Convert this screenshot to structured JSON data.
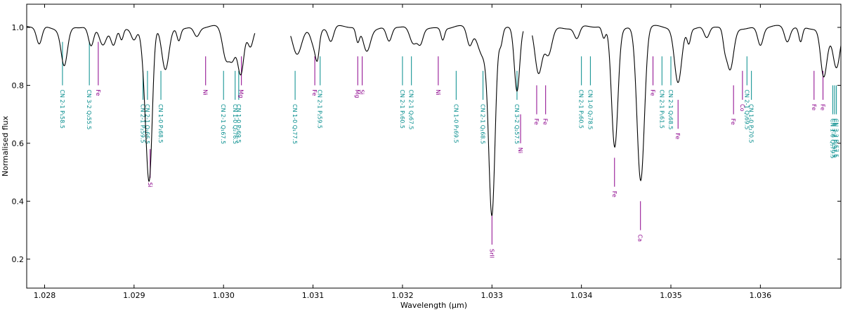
{
  "chart_data": {
    "type": "line",
    "title": "",
    "xlabel": "Wavelength (μm)",
    "ylabel": "Normalised flux",
    "xlim": [
      1.0278,
      1.0369
    ],
    "ylim": [
      0.1,
      1.08
    ],
    "x_ticks": [
      {
        "value": 1.028,
        "label": "1.028"
      },
      {
        "value": 1.029,
        "label": "1.029"
      },
      {
        "value": 1.03,
        "label": "1.030"
      },
      {
        "value": 1.031,
        "label": "1.031"
      },
      {
        "value": 1.032,
        "label": "1.032"
      },
      {
        "value": 1.033,
        "label": "1.033"
      },
      {
        "value": 1.034,
        "label": "1.034"
      },
      {
        "value": 1.035,
        "label": "1.035"
      },
      {
        "value": 1.036,
        "label": "1.036"
      }
    ],
    "y_ticks": [
      {
        "value": 0.2,
        "label": "0.2"
      },
      {
        "value": 0.4,
        "label": "0.4"
      },
      {
        "value": 0.6,
        "label": "0.6"
      },
      {
        "value": 0.8,
        "label": "0.8"
      },
      {
        "value": 1.0,
        "label": "1.0"
      }
    ],
    "colors": {
      "spectrum": "#000000",
      "CN": "#008b8b",
      "atomic": "#8b008b"
    },
    "spectrum": {
      "segments": [
        {
          "start": 1.0278,
          "end": 1.03035
        },
        {
          "start": 1.03075,
          "end": 1.03335
        },
        {
          "start": 1.03345,
          "end": 1.0369
        }
      ],
      "continuum": 1.0,
      "lines": [
        {
          "x": 1.02794,
          "depth": 0.06,
          "width": 3e-05
        },
        {
          "x": 1.02822,
          "depth": 0.05,
          "width": 3e-05
        },
        {
          "x": 1.02852,
          "depth": 0.07,
          "width": 3e-05
        },
        {
          "x": 1.02877,
          "depth": 0.06,
          "width": 3e-05
        },
        {
          "x": 1.029,
          "depth": 0.04,
          "width": 3e-05
        },
        {
          "x": 1.02915,
          "depth": 0.08,
          "width": 3e-05
        },
        {
          "x": 1.0297,
          "depth": 0.03,
          "width": 3e-05
        },
        {
          "x": 1.0301,
          "depth": 0.08,
          "width": 3e-05
        },
        {
          "x": 1.0302,
          "depth": 0.07,
          "width": 3e-05
        },
        {
          "x": 1.0303,
          "depth": 0.06,
          "width": 3e-05
        },
        {
          "x": 1.0312,
          "depth": 0.05,
          "width": 3e-05
        },
        {
          "x": 1.03185,
          "depth": 0.05,
          "width": 3e-05
        },
        {
          "x": 1.0322,
          "depth": 0.05,
          "width": 3e-05
        },
        {
          "x": 1.03275,
          "depth": 0.06,
          "width": 3e-05
        },
        {
          "x": 1.03395,
          "depth": 0.04,
          "width": 3e-05
        },
        {
          "x": 1.0344,
          "depth": 0.03,
          "width": 3e-05
        },
        {
          "x": 1.0347,
          "depth": 0.04,
          "width": 3e-05
        },
        {
          "x": 1.0354,
          "depth": 0.04,
          "width": 3e-05
        },
        {
          "x": 1.036,
          "depth": 0.06,
          "width": 3e-05
        },
        {
          "x": 1.0363,
          "depth": 0.05,
          "width": 3e-05
        },
        {
          "x": 1.0367,
          "depth": 0.07,
          "width": 3e-05
        },
        {
          "x": 1.02886,
          "depth": 0.04,
          "width": 2e-05
        },
        {
          "x": 1.0295,
          "depth": 0.04,
          "width": 2e-05
        },
        {
          "x": 1.03105,
          "depth": 0.06,
          "width": 2e-05
        },
        {
          "x": 1.0315,
          "depth": 0.05,
          "width": 2e-05
        },
        {
          "x": 1.03245,
          "depth": 0.04,
          "width": 2e-05
        },
        {
          "x": 1.0331,
          "depth": 0.05,
          "width": 2e-05
        },
        {
          "x": 1.03425,
          "depth": 0.04,
          "width": 2e-05
        },
        {
          "x": 1.0352,
          "depth": 0.05,
          "width": 2e-05
        },
        {
          "x": 1.0356,
          "depth": 0.04,
          "width": 2e-05
        },
        {
          "x": 1.03645,
          "depth": 0.05,
          "width": 2e-05
        },
        {
          "x": 1.02822,
          "depth": 0.08,
          "width": 4e-05
        },
        {
          "x": 1.02865,
          "depth": 0.06,
          "width": 4e-05
        },
        {
          "x": 1.02918,
          "depth": 0.32,
          "width": 3e-05
        },
        {
          "x": 1.02914,
          "depth": 0.22,
          "width": 4e-05
        },
        {
          "x": 1.02935,
          "depth": 0.15,
          "width": 4e-05
        },
        {
          "x": 1.03003,
          "depth": 0.11,
          "width": 4e-05
        },
        {
          "x": 1.03018,
          "depth": 0.1,
          "width": 4e-05
        },
        {
          "x": 1.03082,
          "depth": 0.09,
          "width": 5e-05
        },
        {
          "x": 1.03102,
          "depth": 0.07,
          "width": 4e-05
        },
        {
          "x": 1.0316,
          "depth": 0.08,
          "width": 4e-05
        },
        {
          "x": 1.03212,
          "depth": 0.06,
          "width": 4e-05
        },
        {
          "x": 1.033,
          "depth": 0.62,
          "width": 3.5e-05
        },
        {
          "x": 1.0329,
          "depth": 0.1,
          "width": 6e-05
        },
        {
          "x": 1.03328,
          "depth": 0.22,
          "width": 3e-05
        },
        {
          "x": 1.03352,
          "depth": 0.16,
          "width": 4e-05
        },
        {
          "x": 1.03363,
          "depth": 0.09,
          "width": 4e-05
        },
        {
          "x": 1.03437,
          "depth": 0.39,
          "width": 3.5e-05
        },
        {
          "x": 1.03466,
          "depth": 0.51,
          "width": 4e-05
        },
        {
          "x": 1.03508,
          "depth": 0.19,
          "width": 4e-05
        },
        {
          "x": 1.03566,
          "depth": 0.15,
          "width": 4e-05
        },
        {
          "x": 1.03672,
          "depth": 0.11,
          "width": 4e-05
        },
        {
          "x": 1.03685,
          "depth": 0.14,
          "width": 4e-05
        }
      ]
    },
    "line_ids": [
      {
        "x": 1.0282,
        "label": "CN 2-1 P₁58.5",
        "species": "CN",
        "y_top": 0.95,
        "y_bottom": 0.8
      },
      {
        "x": 1.0285,
        "label": "CN 3-2 Q₂55.5",
        "species": "CN",
        "y_top": 0.95,
        "y_bottom": 0.8
      },
      {
        "x": 1.0286,
        "label": "Fe",
        "species": "atomic",
        "y_top": 0.95,
        "y_bottom": 0.8
      },
      {
        "x": 1.0291,
        "label": "CN 2-1 P₂59.5",
        "species": "CN",
        "y_top": 0.85,
        "y_bottom": 0.75
      },
      {
        "x": 1.02915,
        "label": "CN 2-1 Q₂66.5",
        "species": "CN",
        "y_top": 0.85,
        "y_bottom": 0.75
      },
      {
        "x": 1.02918,
        "label": "Si",
        "species": "atomic",
        "y_top": 0.58,
        "y_bottom": 0.48
      },
      {
        "x": 1.0293,
        "label": "CN 1-0 P₁68.5",
        "species": "CN",
        "y_top": 0.85,
        "y_bottom": 0.75
      },
      {
        "x": 1.0298,
        "label": "Ni",
        "species": "atomic",
        "y_top": 0.9,
        "y_bottom": 0.8
      },
      {
        "x": 1.03,
        "label": "CN 2-1 Q₁67.5",
        "species": "CN",
        "y_top": 0.85,
        "y_bottom": 0.75
      },
      {
        "x": 1.03013,
        "label": "CN 1-0 Q₂76.5",
        "species": "CN",
        "y_top": 0.85,
        "y_bottom": 0.75
      },
      {
        "x": 1.03017,
        "label": "CN 1-0 P₂69.5",
        "species": "CN",
        "y_top": 0.85,
        "y_bottom": 0.75
      },
      {
        "x": 1.0302,
        "label": "Mg",
        "species": "atomic",
        "y_top": 0.9,
        "y_bottom": 0.8
      },
      {
        "x": 1.0308,
        "label": "CN 1-0 Q₁77.5",
        "species": "CN",
        "y_top": 0.85,
        "y_bottom": 0.75
      },
      {
        "x": 1.03102,
        "label": "Fe",
        "species": "atomic",
        "y_top": 0.9,
        "y_bottom": 0.8
      },
      {
        "x": 1.03108,
        "label": "CN 2-1 P₂59.5",
        "species": "CN",
        "y_top": 0.9,
        "y_bottom": 0.8
      },
      {
        "x": 1.0315,
        "label": "Mg",
        "species": "atomic",
        "y_top": 0.9,
        "y_bottom": 0.8
      },
      {
        "x": 1.03155,
        "label": "Si",
        "species": "atomic",
        "y_top": 0.9,
        "y_bottom": 0.8
      },
      {
        "x": 1.032,
        "label": "CN 2-1 P₁60.5",
        "species": "CN",
        "y_top": 0.9,
        "y_bottom": 0.8
      },
      {
        "x": 1.0321,
        "label": "CN 2-1 Q₂67.5",
        "species": "CN",
        "y_top": 0.9,
        "y_bottom": 0.8
      },
      {
        "x": 1.0324,
        "label": "Ni",
        "species": "atomic",
        "y_top": 0.9,
        "y_bottom": 0.8
      },
      {
        "x": 1.0326,
        "label": "CN 1-0 P₁69.5",
        "species": "CN",
        "y_top": 0.85,
        "y_bottom": 0.75
      },
      {
        "x": 1.0329,
        "label": "CN 2-1 Q₁68.5",
        "species": "CN",
        "y_top": 0.85,
        "y_bottom": 0.75
      },
      {
        "x": 1.033,
        "label": "SrII",
        "species": "atomic",
        "y_top": 0.35,
        "y_bottom": 0.25
      },
      {
        "x": 1.03328,
        "label": "CN 3-2 Q₂57.5",
        "species": "CN",
        "y_top": 0.85,
        "y_bottom": 0.75
      },
      {
        "x": 1.03332,
        "label": "Ni",
        "species": "atomic",
        "y_top": 0.7,
        "y_bottom": 0.6
      },
      {
        "x": 1.0335,
        "label": "Fe",
        "species": "atomic",
        "y_top": 0.8,
        "y_bottom": 0.7
      },
      {
        "x": 1.0336,
        "label": "Fe",
        "species": "atomic",
        "y_top": 0.8,
        "y_bottom": 0.7
      },
      {
        "x": 1.034,
        "label": "CN 2-1 P₂60.5",
        "species": "CN",
        "y_top": 0.9,
        "y_bottom": 0.8
      },
      {
        "x": 1.0341,
        "label": "CN 1-0 Q₂78.5",
        "species": "CN",
        "y_top": 0.9,
        "y_bottom": 0.8
      },
      {
        "x": 1.03437,
        "label": "Fe",
        "species": "atomic",
        "y_top": 0.55,
        "y_bottom": 0.45
      },
      {
        "x": 1.03466,
        "label": "Ca",
        "species": "atomic",
        "y_top": 0.4,
        "y_bottom": 0.3
      },
      {
        "x": 1.0348,
        "label": "Fe",
        "species": "atomic",
        "y_top": 0.9,
        "y_bottom": 0.8
      },
      {
        "x": 1.0349,
        "label": "CN 2-1 P₁61.5",
        "species": "CN",
        "y_top": 0.9,
        "y_bottom": 0.8
      },
      {
        "x": 1.035,
        "label": "CN 2-1 Q₂68.5",
        "species": "CN",
        "y_top": 0.9,
        "y_bottom": 0.8
      },
      {
        "x": 1.03508,
        "label": "Fe",
        "species": "atomic",
        "y_top": 0.75,
        "y_bottom": 0.65
      },
      {
        "x": 1.0357,
        "label": "Fe",
        "species": "atomic",
        "y_top": 0.8,
        "y_bottom": 0.7
      },
      {
        "x": 1.0358,
        "label": "Co",
        "species": "atomic",
        "y_top": 0.85,
        "y_bottom": 0.75
      },
      {
        "x": 1.03585,
        "label": "CN 2-1 Q₁69.5",
        "species": "CN",
        "y_top": 0.9,
        "y_bottom": 0.8
      },
      {
        "x": 1.0359,
        "label": "CN 1-0 P₁70.5",
        "species": "CN",
        "y_top": 0.85,
        "y_bottom": 0.75
      },
      {
        "x": 1.0366,
        "label": "Fe",
        "species": "atomic",
        "y_top": 0.85,
        "y_bottom": 0.75
      },
      {
        "x": 1.0367,
        "label": "Fe",
        "species": "atomic",
        "y_top": 0.85,
        "y_bottom": 0.75
      },
      {
        "x": 1.03681,
        "label": "CN 1-0 Q₁79.5",
        "species": "CN",
        "y_top": 0.8,
        "y_bottom": 0.7
      },
      {
        "x": 1.03683,
        "label": "CN 3-2 P₂57.5",
        "species": "CN",
        "y_top": 0.8,
        "y_bottom": 0.7
      },
      {
        "x": 1.03685,
        "label": "CN 3-2 P₁57.5",
        "species": "CN",
        "y_top": 0.8,
        "y_bottom": 0.7
      }
    ]
  }
}
